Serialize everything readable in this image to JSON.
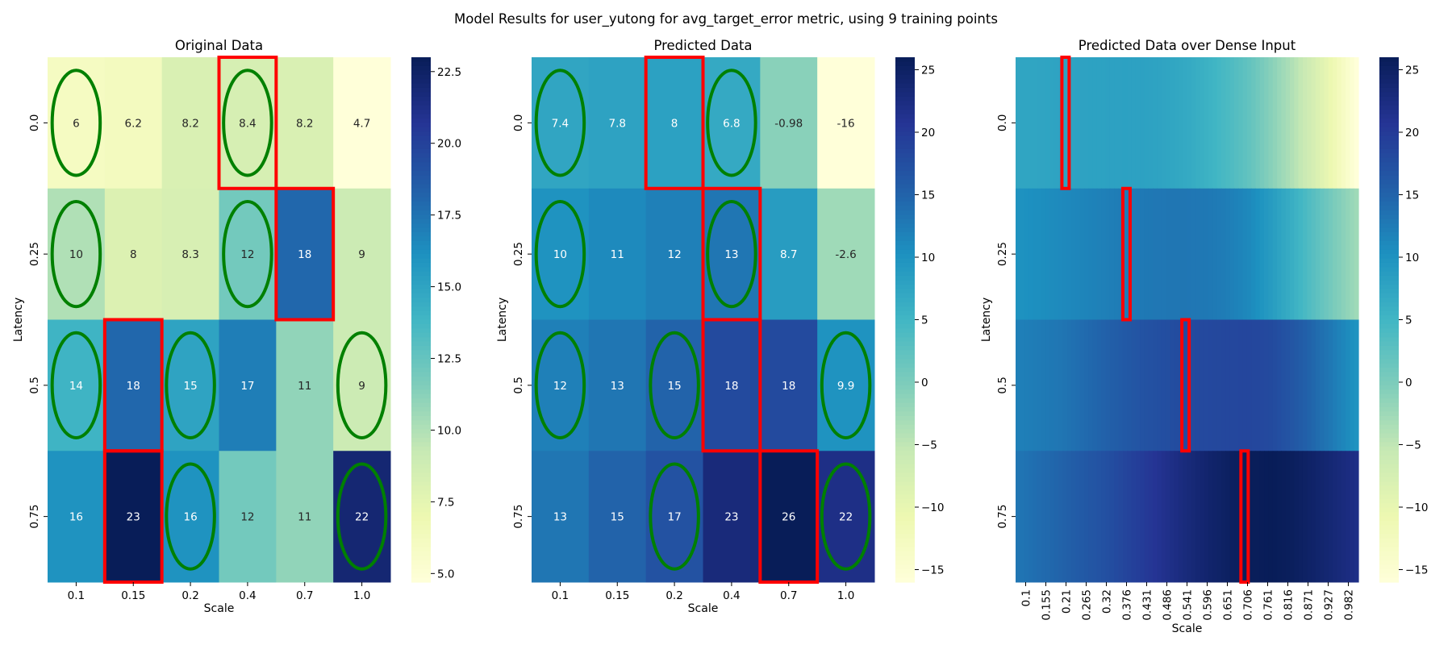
{
  "figure": {
    "suptitle": "Model Results for user_yutong for avg_target_error metric, using 9 training points"
  },
  "chart_data": [
    {
      "type": "heatmap",
      "title": "Original Data",
      "xlabel": "Scale",
      "ylabel": "Latency",
      "x_ticks": [
        "0.1",
        "0.15",
        "0.2",
        "0.4",
        "0.7",
        "1.0"
      ],
      "y_ticks": [
        "0.0",
        "0.25",
        "0.5",
        "0.75"
      ],
      "values": [
        [
          6,
          6.2,
          8.2,
          8.4,
          8.2,
          4.7
        ],
        [
          10,
          8,
          8.3,
          12,
          18,
          9
        ],
        [
          14,
          18,
          15,
          17,
          11,
          9
        ],
        [
          16,
          23,
          16,
          12,
          11,
          22
        ]
      ],
      "annotations": [
        [
          "6",
          "6.2",
          "8.2",
          "8.4",
          "8.2",
          "4.7"
        ],
        [
          "10",
          "8",
          "8.3",
          "12",
          "18",
          "9"
        ],
        [
          "14",
          "18",
          "15",
          "17",
          "11",
          "9"
        ],
        [
          "16",
          "23",
          "16",
          "12",
          "11",
          "22"
        ]
      ],
      "colorbar": {
        "vmin": 4.7,
        "vmax": 23,
        "ticks": [
          "5.0",
          "7.5",
          "10.0",
          "12.5",
          "15.0",
          "17.5",
          "20.0",
          "22.5"
        ],
        "tick_values": [
          5,
          7.5,
          10,
          12.5,
          15,
          17.5,
          20,
          22.5
        ]
      },
      "green_ellipses": [
        [
          0,
          0
        ],
        [
          0,
          3
        ],
        [
          1,
          0
        ],
        [
          1,
          3
        ],
        [
          2,
          0
        ],
        [
          2,
          2
        ],
        [
          2,
          5
        ],
        [
          3,
          2
        ],
        [
          3,
          5
        ]
      ],
      "red_boxes": [
        [
          0,
          3
        ],
        [
          1,
          4
        ],
        [
          2,
          1
        ],
        [
          3,
          1
        ]
      ]
    },
    {
      "type": "heatmap",
      "title": "Predicted Data",
      "xlabel": "Scale",
      "ylabel": "Latency",
      "x_ticks": [
        "0.1",
        "0.15",
        "0.2",
        "0.4",
        "0.7",
        "1.0"
      ],
      "y_ticks": [
        "0.0",
        "0.25",
        "0.5",
        "0.75"
      ],
      "values": [
        [
          7.4,
          7.8,
          8,
          6.8,
          -0.98,
          -16
        ],
        [
          10,
          11,
          12,
          13,
          8.7,
          -2.6
        ],
        [
          12,
          13,
          15,
          18,
          18,
          9.9
        ],
        [
          13,
          15,
          17,
          23,
          26,
          22
        ]
      ],
      "annotations": [
        [
          "7.4",
          "7.8",
          "8",
          "6.8",
          "-0.98",
          "-16"
        ],
        [
          "10",
          "11",
          "12",
          "13",
          "8.7",
          "-2.6"
        ],
        [
          "12",
          "13",
          "15",
          "18",
          "18",
          "9.9"
        ],
        [
          "13",
          "15",
          "17",
          "23",
          "26",
          "22"
        ]
      ],
      "colorbar": {
        "vmin": -16,
        "vmax": 26,
        "ticks": [
          "25",
          "20",
          "15",
          "10",
          "5",
          "0",
          "−5",
          "−10",
          "−15"
        ],
        "tick_values": [
          25,
          20,
          15,
          10,
          5,
          0,
          -5,
          -10,
          -15
        ]
      },
      "green_ellipses": [
        [
          0,
          0
        ],
        [
          0,
          3
        ],
        [
          1,
          0
        ],
        [
          1,
          3
        ],
        [
          2,
          0
        ],
        [
          2,
          2
        ],
        [
          2,
          5
        ],
        [
          3,
          2
        ],
        [
          3,
          5
        ]
      ],
      "red_boxes": [
        [
          0,
          2
        ],
        [
          1,
          3
        ],
        [
          2,
          3
        ],
        [
          3,
          4
        ]
      ]
    },
    {
      "type": "heatmap",
      "title": "Predicted Data over Dense Input",
      "xlabel": "Scale",
      "ylabel": "Latency",
      "x_ticks": [
        "0.1",
        "0.155",
        "0.21",
        "0.265",
        "0.32",
        "0.376",
        "0.431",
        "0.486",
        "0.541",
        "0.596",
        "0.651",
        "0.706",
        "0.761",
        "0.816",
        "0.871",
        "0.927",
        "0.982"
      ],
      "y_ticks": [
        "0.0",
        "0.25",
        "0.5",
        "0.75"
      ],
      "dense_rows": [
        [
          7.4,
          7.5,
          7.7,
          7.8,
          7.9,
          8.0,
          7.9,
          7.5,
          6.8,
          5.6,
          4.0,
          2.0,
          -0.98,
          -4.0,
          -7.5,
          -11.5,
          -16
        ],
        [
          10,
          10.5,
          11,
          11.5,
          12,
          12.5,
          12.8,
          13,
          13,
          12.8,
          12.2,
          11,
          8.7,
          6.0,
          3.0,
          0.0,
          -2.6
        ],
        [
          12,
          12.5,
          13,
          14,
          15,
          16,
          17,
          17.5,
          18,
          18.2,
          18.4,
          18.5,
          18,
          16.5,
          14.5,
          12.3,
          9.9
        ],
        [
          13,
          14,
          15,
          16,
          17,
          18.5,
          20,
          21.5,
          23,
          24.2,
          25.2,
          25.8,
          26,
          25.5,
          24.5,
          23.3,
          22
        ]
      ],
      "colorbar": {
        "vmin": -16,
        "vmax": 26,
        "ticks": [
          "25",
          "20",
          "15",
          "10",
          "5",
          "0",
          "−5",
          "−10",
          "−15"
        ],
        "tick_values": [
          25,
          20,
          15,
          10,
          5,
          0,
          -5,
          -10,
          -15
        ]
      },
      "red_boxes_x": [
        [
          0,
          0.23
        ],
        [
          1,
          0.39
        ],
        [
          2,
          0.545
        ],
        [
          3,
          0.7
        ]
      ]
    }
  ],
  "colors": {
    "ellipse": "#008000",
    "highlight_box": "#ff0000",
    "colormap": [
      "#ffffd9",
      "#edf8b1",
      "#c7e9b4",
      "#7fcdbb",
      "#41b6c4",
      "#1d91c0",
      "#225ea8",
      "#253494",
      "#081d58"
    ]
  }
}
